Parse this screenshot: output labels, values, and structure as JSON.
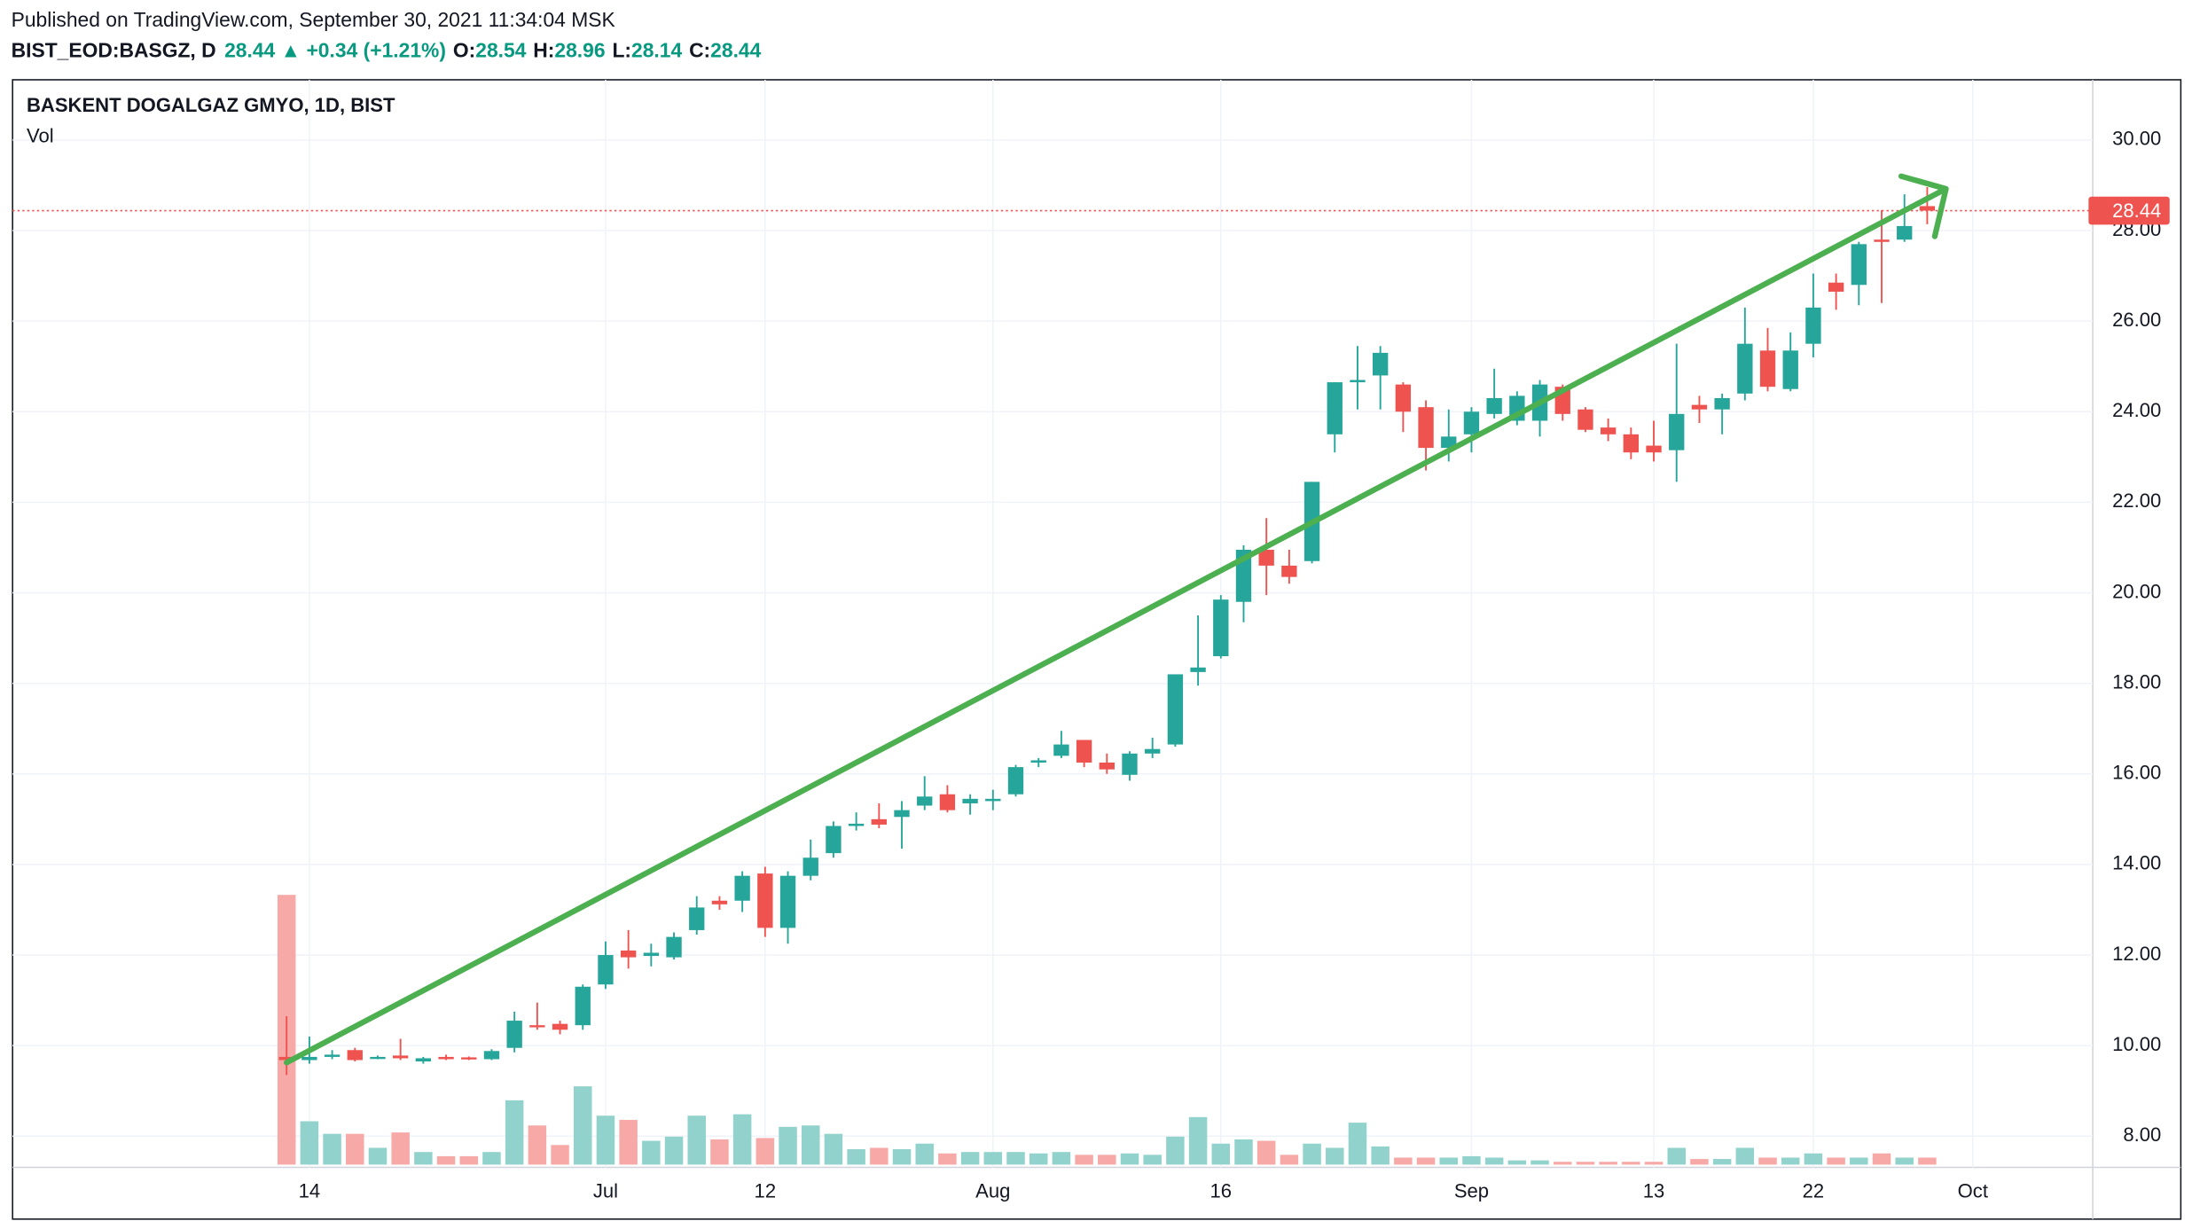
{
  "header": {
    "published": "Published on TradingView.com, September 30, 2021 11:34:04 MSK",
    "symbol": "BIST_EOD:BASGZ, D",
    "last": "28.44",
    "change_icon": "▲",
    "change": "+0.34 (+1.21%)",
    "open_label": "O:",
    "open": "28.54",
    "high_label": "H:",
    "high": "28.96",
    "low_label": "L:",
    "low": "28.14",
    "close_label": "C:",
    "close": "28.44"
  },
  "chart_data": {
    "type": "candlestick",
    "title": "BASKENT DOGALGAZ GMYO, 1D, BIST",
    "volume_name": "Vol",
    "up_color": "#26a69a",
    "down_color": "#ef5350",
    "volume_up_color": "#92d2cc",
    "volume_down_color": "#f7a9a7",
    "grid": true,
    "categories": [
      null,
      "14",
      null,
      null,
      null,
      null,
      null,
      null,
      null,
      null,
      null,
      null,
      null,
      null,
      "Jul",
      null,
      null,
      null,
      null,
      null,
      null,
      "12",
      null,
      null,
      null,
      null,
      null,
      null,
      null,
      null,
      null,
      "Aug",
      null,
      null,
      null,
      null,
      null,
      null,
      null,
      null,
      null,
      "16",
      null,
      null,
      null,
      null,
      null,
      null,
      null,
      null,
      null,
      null,
      "Sep",
      null,
      null,
      null,
      null,
      null,
      null,
      null,
      "13",
      null,
      null,
      null,
      null,
      null,
      null,
      "22",
      null,
      null,
      null,
      null,
      null,
      null,
      "Oct"
    ],
    "open": [
      9.75,
      9.68,
      9.75,
      9.9,
      9.72,
      9.78,
      9.65,
      9.75,
      9.74,
      9.7,
      9.95,
      10.45,
      10.48,
      10.45,
      11.35,
      12.1,
      11.98,
      11.95,
      12.55,
      13.2,
      13.2,
      13.8,
      12.6,
      13.75,
      14.25,
      14.85,
      15.0,
      15.05,
      15.3,
      15.55,
      15.35,
      15.4,
      15.55,
      16.25,
      16.4,
      16.75,
      16.25,
      15.98,
      16.45,
      16.65,
      18.25,
      18.6,
      19.8,
      20.95,
      20.6,
      20.7,
      23.5,
      24.65,
      24.8,
      24.6,
      24.1,
      23.2,
      23.5,
      23.95,
      23.8,
      23.8,
      24.55,
      24.05,
      23.65,
      23.5,
      23.25,
      23.15,
      24.15,
      24.05,
      24.4,
      25.35,
      24.5,
      25.5,
      26.85,
      26.8,
      27.8,
      27.8,
      28.54,
      null,
      null
    ],
    "high": [
      10.65,
      10.2,
      9.9,
      9.95,
      9.78,
      10.15,
      9.75,
      9.8,
      9.76,
      9.92,
      10.75,
      10.95,
      10.55,
      11.35,
      12.3,
      12.55,
      12.25,
      12.5,
      13.3,
      13.3,
      13.85,
      13.95,
      13.85,
      14.55,
      14.95,
      15.15,
      15.35,
      15.4,
      15.95,
      15.75,
      15.55,
      15.65,
      16.2,
      16.35,
      16.95,
      16.75,
      16.45,
      16.5,
      16.8,
      18.2,
      19.5,
      19.95,
      21.05,
      21.65,
      20.95,
      22.45,
      24.65,
      25.45,
      25.45,
      24.65,
      24.25,
      24.05,
      24.1,
      24.95,
      24.45,
      24.7,
      24.6,
      24.1,
      23.85,
      23.65,
      23.8,
      25.5,
      24.35,
      24.4,
      26.3,
      25.85,
      25.75,
      27.05,
      27.05,
      27.75,
      28.45,
      28.8,
      28.96,
      null,
      null
    ],
    "low": [
      9.35,
      9.6,
      9.7,
      9.65,
      9.7,
      9.68,
      9.6,
      9.68,
      9.68,
      9.68,
      9.85,
      10.35,
      10.25,
      10.35,
      11.25,
      11.7,
      11.75,
      11.9,
      12.45,
      13.0,
      12.95,
      12.4,
      12.25,
      13.65,
      14.15,
      14.75,
      14.8,
      14.35,
      15.2,
      15.15,
      15.1,
      15.2,
      15.5,
      16.15,
      16.35,
      16.15,
      16.0,
      15.85,
      16.35,
      16.6,
      17.95,
      18.55,
      19.35,
      19.95,
      20.2,
      20.65,
      23.1,
      24.05,
      24.05,
      23.55,
      22.7,
      22.9,
      23.1,
      23.85,
      23.7,
      23.45,
      23.8,
      23.55,
      23.35,
      22.95,
      22.9,
      22.45,
      23.75,
      23.5,
      24.25,
      24.45,
      24.45,
      25.2,
      26.25,
      26.35,
      26.4,
      27.75,
      28.14,
      null,
      null
    ],
    "close": [
      9.68,
      9.75,
      9.8,
      9.68,
      9.75,
      9.72,
      9.72,
      9.7,
      9.7,
      9.88,
      10.55,
      10.42,
      10.35,
      11.3,
      12.0,
      11.95,
      12.05,
      12.4,
      13.05,
      13.12,
      13.75,
      12.6,
      13.75,
      14.15,
      14.85,
      14.9,
      14.88,
      15.2,
      15.5,
      15.2,
      15.45,
      15.45,
      16.15,
      16.3,
      16.65,
      16.25,
      16.1,
      16.45,
      16.55,
      18.2,
      18.35,
      19.85,
      20.95,
      20.6,
      20.35,
      22.45,
      24.65,
      24.7,
      25.3,
      24.0,
      23.2,
      23.45,
      24.0,
      24.3,
      24.35,
      24.6,
      23.95,
      23.6,
      23.5,
      23.1,
      23.1,
      23.95,
      24.05,
      24.3,
      25.5,
      24.55,
      25.35,
      26.3,
      26.65,
      27.7,
      27.75,
      28.1,
      28.44,
      null,
      null
    ],
    "volume": [
      193,
      31,
      22,
      22,
      12,
      23,
      9,
      6,
      6,
      9,
      46,
      28,
      14,
      56,
      35,
      32,
      17,
      20,
      35,
      18,
      36,
      19,
      27,
      28,
      22,
      11,
      12,
      11,
      15,
      8,
      9,
      9,
      9,
      8,
      9,
      7,
      7,
      8,
      7,
      20,
      34,
      15,
      18,
      17,
      7,
      15,
      12,
      30,
      13,
      5,
      5,
      5,
      6,
      5,
      3,
      3,
      2,
      2,
      2,
      2,
      2,
      12,
      4,
      4,
      12,
      5,
      5,
      8,
      5,
      5,
      8,
      5,
      5,
      null,
      null
    ],
    "ylim": [
      7.31,
      31.33
    ],
    "yticks": [
      {
        "value": 8,
        "label": "8.00"
      },
      {
        "value": 10,
        "label": "10.00"
      },
      {
        "value": 12,
        "label": "12.00"
      },
      {
        "value": 14,
        "label": "14.00"
      },
      {
        "value": 16,
        "label": "16.00"
      },
      {
        "value": 18,
        "label": "18.00"
      },
      {
        "value": 20,
        "label": "20.00"
      },
      {
        "value": 22,
        "label": "22.00"
      },
      {
        "value": 24,
        "label": "24.00"
      },
      {
        "value": 26,
        "label": "26.00"
      },
      {
        "value": 28,
        "label": "28.00"
      },
      {
        "value": 30,
        "label": "30.00"
      }
    ],
    "last_price_line": {
      "value": 28.44,
      "label": "28.44"
    }
  }
}
